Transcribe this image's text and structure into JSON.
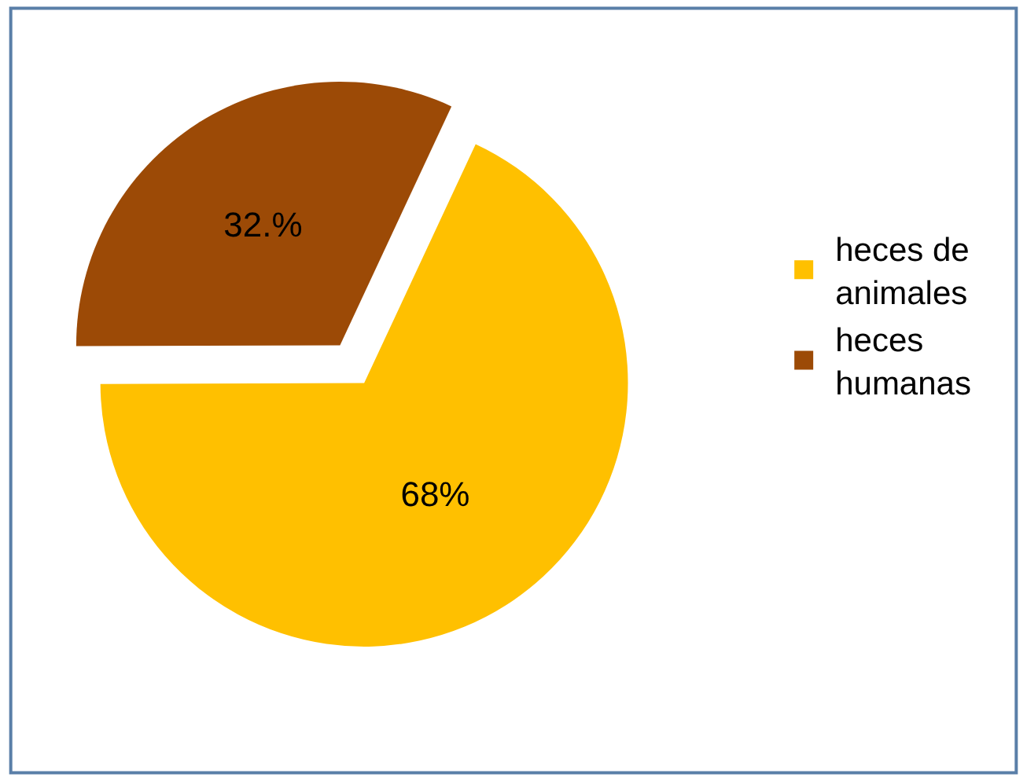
{
  "chart_data": {
    "type": "pie",
    "categories": [
      "heces de animales",
      "heces humanas"
    ],
    "values": [
      68,
      32
    ],
    "colors": [
      "#ffc000",
      "#9c4a06"
    ],
    "value_labels": [
      "68%",
      "32.%"
    ],
    "legend": "right"
  }
}
